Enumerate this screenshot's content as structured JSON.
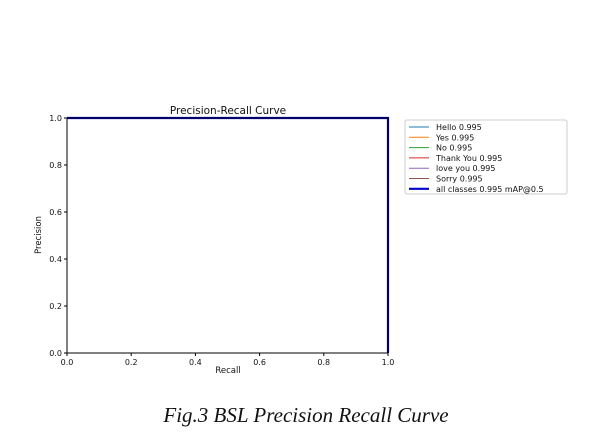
{
  "caption": "Fig.3 BSL Precision Recall Curve",
  "chart_data": {
    "type": "line",
    "title": "Precision-Recall Curve",
    "xlabel": "Recall",
    "ylabel": "Precision",
    "xlim": [
      0.0,
      1.0
    ],
    "ylim": [
      0.0,
      1.0
    ],
    "xticks": [
      "0.0",
      "0.2",
      "0.4",
      "0.6",
      "0.8",
      "1.0"
    ],
    "yticks": [
      "0.0",
      "0.2",
      "0.4",
      "0.6",
      "0.8",
      "1.0"
    ],
    "grid": false,
    "legend_position": "outside-right",
    "series": [
      {
        "name": "Hello 0.995",
        "color": "#1f77b4",
        "bold": false,
        "x": [
          0.0,
          1.0,
          1.0
        ],
        "y": [
          1.0,
          1.0,
          0.0
        ]
      },
      {
        "name": "Yes 0.995",
        "color": "#ff7f0e",
        "bold": false,
        "x": [
          0.0,
          1.0,
          1.0
        ],
        "y": [
          1.0,
          1.0,
          0.0
        ]
      },
      {
        "name": "No 0.995",
        "color": "#2ca02c",
        "bold": false,
        "x": [
          0.0,
          1.0,
          1.0
        ],
        "y": [
          1.0,
          1.0,
          0.0
        ]
      },
      {
        "name": "Thank You 0.995",
        "color": "#d62728",
        "bold": false,
        "x": [
          0.0,
          1.0,
          1.0
        ],
        "y": [
          1.0,
          1.0,
          0.0
        ]
      },
      {
        "name": "love you 0.995",
        "color": "#9467bd",
        "bold": false,
        "x": [
          0.0,
          1.0,
          1.0
        ],
        "y": [
          1.0,
          1.0,
          0.0
        ]
      },
      {
        "name": "Sorry 0.995",
        "color": "#8c564b",
        "bold": false,
        "x": [
          0.0,
          1.0,
          1.0
        ],
        "y": [
          1.0,
          1.0,
          0.0
        ]
      },
      {
        "name": "all classes 0.995 mAP@0.5",
        "color": "#0000cc",
        "bold": true,
        "x": [
          0.0,
          1.0,
          1.0
        ],
        "y": [
          1.0,
          1.0,
          0.0
        ]
      }
    ]
  }
}
